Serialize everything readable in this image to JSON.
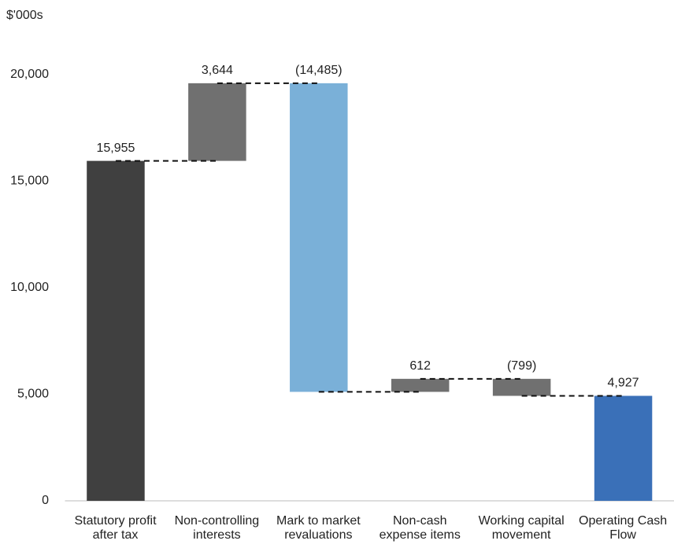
{
  "chart_data": {
    "type": "waterfall",
    "y_unit": "$'000s",
    "categories": [
      "Statutory profit after tax",
      "Non-controlling interests",
      "Mark to market revaluations",
      "Non-cash expense items",
      "Working capital movement",
      "Operating Cash Flow"
    ],
    "values": [
      15955,
      3644,
      -14485,
      612,
      -799,
      4927
    ],
    "value_labels": [
      "15,955",
      "3,644",
      "(14,485)",
      "612",
      "(799)",
      "4,927"
    ],
    "measure": [
      "total",
      "relative",
      "relative",
      "relative",
      "relative",
      "total"
    ],
    "colors": [
      "#404040",
      "#707070",
      "#7ab0d8",
      "#707070",
      "#707070",
      "#3a70b8"
    ],
    "ylim": [
      0,
      20000
    ],
    "yticks": [
      0,
      {
        "value": 5000,
        "label": "5,000"
      },
      {
        "value": 10000,
        "label": "10,000"
      },
      {
        "value": 15000,
        "label": "15,000"
      },
      {
        "value": 20000,
        "label": "20,000"
      }
    ],
    "connectors": true
  }
}
